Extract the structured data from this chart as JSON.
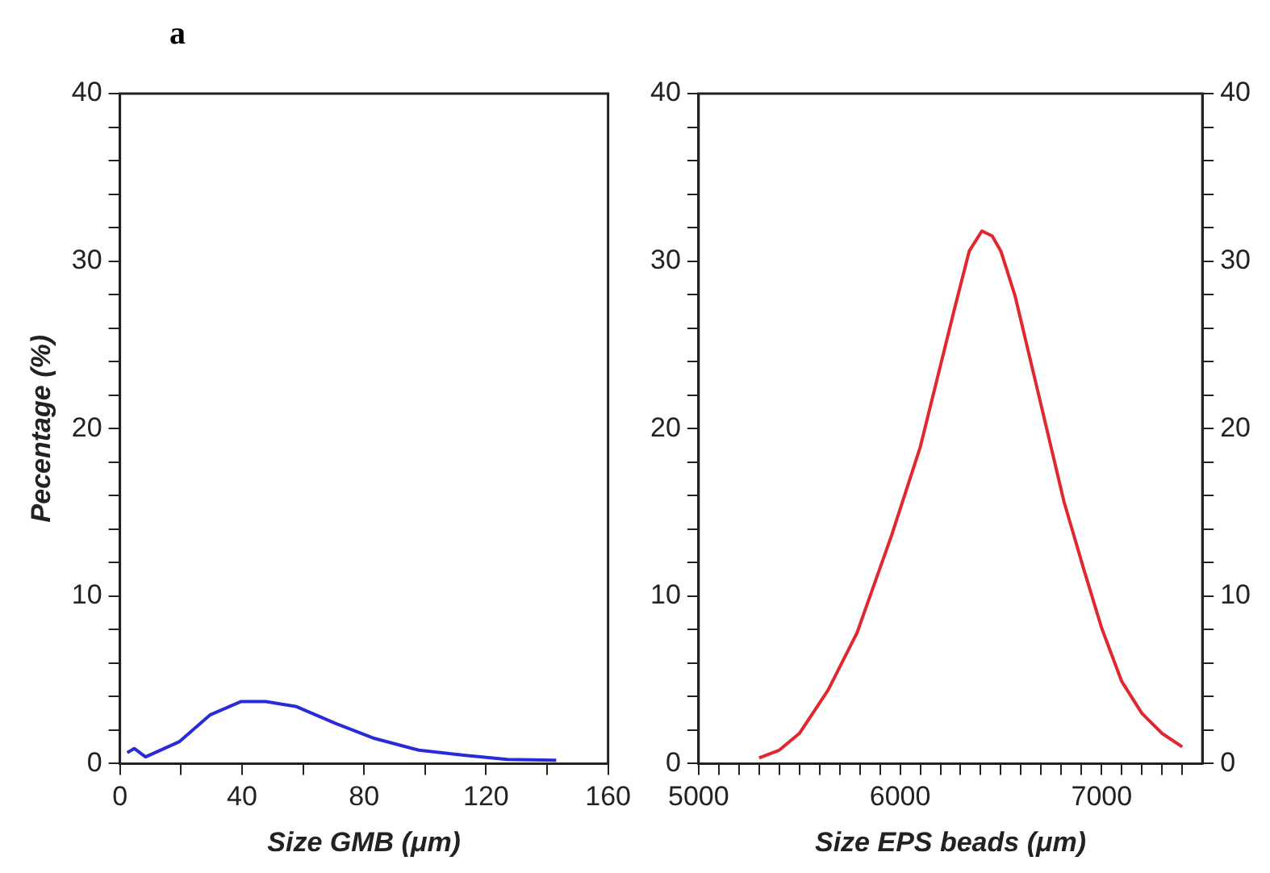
{
  "chart_data": [
    {
      "type": "line",
      "annotations": [
        "a"
      ],
      "xlabel": "Size GMB (μm)",
      "ylabel": "Pecentage (%)",
      "series": [
        {
          "color": "#2a2ad8",
          "x": [
            2.4,
            4.7,
            8.4,
            19.4,
            29.5,
            39.6,
            47.8,
            57.9,
            70.7,
            83.5,
            98,
            112.7,
            127,
            143
          ],
          "values": [
            0.65,
            0.9,
            0.4,
            1.3,
            2.9,
            3.7,
            3.7,
            3.4,
            2.4,
            1.5,
            0.8,
            0.5,
            0.25,
            0.2
          ]
        }
      ],
      "xlim": [
        0,
        160
      ],
      "xticks": [
        0,
        {
          "value": 20,
          "label": null
        },
        40,
        {
          "value": 60,
          "label": null
        },
        80,
        {
          "value": 100,
          "label": null
        },
        120,
        {
          "value": 140,
          "label": null
        },
        160
      ],
      "ylim": [
        0,
        40
      ],
      "yticks": [
        0,
        {
          "value": 2,
          "label": null
        },
        {
          "value": 4,
          "label": null
        },
        {
          "value": 6,
          "label": null
        },
        {
          "value": 8,
          "label": null
        },
        10,
        {
          "value": 12,
          "label": null
        },
        {
          "value": 14,
          "label": null
        },
        {
          "value": 16,
          "label": null
        },
        {
          "value": 18,
          "label": null
        },
        20,
        {
          "value": 22,
          "label": null
        },
        {
          "value": 24,
          "label": null
        },
        {
          "value": 26,
          "label": null
        },
        {
          "value": 28,
          "label": null
        },
        30,
        {
          "value": 32,
          "label": null
        },
        {
          "value": 34,
          "label": null
        },
        {
          "value": 36,
          "label": null
        },
        {
          "value": 38,
          "label": null
        },
        40
      ]
    },
    {
      "type": "line",
      "xlabel": "Size EPS beads (μm)",
      "series": [
        {
          "color": "#e0282e",
          "x": [
            5300,
            5400,
            5500,
            5643,
            5786,
            5957,
            6100,
            6271,
            6343,
            6406,
            6457,
            6500,
            6571,
            6686,
            6814,
            6914,
            7000,
            7100,
            7200,
            7300,
            7400
          ],
          "values": [
            0.34,
            0.8,
            1.8,
            4.4,
            7.8,
            13.6,
            18.9,
            27.2,
            30.6,
            31.8,
            31.5,
            30.6,
            27.9,
            22.1,
            15.6,
            11.5,
            8.1,
            4.9,
            3.0,
            1.8,
            1.0
          ]
        }
      ],
      "xlim": [
        5000,
        7500
      ],
      "xticks": [
        5000,
        {
          "value": 5100,
          "label": null
        },
        {
          "value": 5200,
          "label": null
        },
        {
          "value": 5300,
          "label": null
        },
        {
          "value": 5400,
          "label": null
        },
        {
          "value": 5500,
          "label": null
        },
        {
          "value": 5600,
          "label": null
        },
        {
          "value": 5700,
          "label": null
        },
        {
          "value": 5800,
          "label": null
        },
        {
          "value": 5900,
          "label": null
        },
        6000,
        {
          "value": 6100,
          "label": null
        },
        {
          "value": 6200,
          "label": null
        },
        {
          "value": 6300,
          "label": null
        },
        {
          "value": 6400,
          "label": null
        },
        {
          "value": 6500,
          "label": null
        },
        {
          "value": 6600,
          "label": null
        },
        {
          "value": 6700,
          "label": null
        },
        {
          "value": 6800,
          "label": null
        },
        {
          "value": 6900,
          "label": null
        },
        7000,
        {
          "value": 7100,
          "label": null
        },
        {
          "value": 7200,
          "label": null
        },
        {
          "value": 7300,
          "label": null
        },
        {
          "value": 7400,
          "label": null
        }
      ],
      "ylim": [
        0,
        40
      ],
      "yticks": [
        0,
        {
          "value": 2,
          "label": null
        },
        {
          "value": 4,
          "label": null
        },
        {
          "value": 6,
          "label": null
        },
        {
          "value": 8,
          "label": null
        },
        10,
        {
          "value": 12,
          "label": null
        },
        {
          "value": 14,
          "label": null
        },
        {
          "value": 16,
          "label": null
        },
        {
          "value": 18,
          "label": null
        },
        20,
        {
          "value": 22,
          "label": null
        },
        {
          "value": 24,
          "label": null
        },
        {
          "value": 26,
          "label": null
        },
        {
          "value": 28,
          "label": null
        },
        30,
        {
          "value": 32,
          "label": null
        },
        {
          "value": 34,
          "label": null
        },
        {
          "value": 36,
          "label": null
        },
        {
          "value": 38,
          "label": null
        },
        40
      ],
      "y2lim": [
        0,
        40
      ],
      "y2ticks": [
        0,
        {
          "value": 2,
          "label": null
        },
        {
          "value": 4,
          "label": null
        },
        {
          "value": 6,
          "label": null
        },
        {
          "value": 8,
          "label": null
        },
        10,
        {
          "value": 12,
          "label": null
        },
        {
          "value": 14,
          "label": null
        },
        {
          "value": 16,
          "label": null
        },
        {
          "value": 18,
          "label": null
        },
        20,
        {
          "value": 22,
          "label": null
        },
        {
          "value": 24,
          "label": null
        },
        {
          "value": 26,
          "label": null
        },
        {
          "value": 28,
          "label": null
        },
        30,
        {
          "value": 32,
          "label": null
        },
        {
          "value": 34,
          "label": null
        },
        {
          "value": 36,
          "label": null
        },
        {
          "value": 38,
          "label": null
        },
        40
      ]
    }
  ]
}
